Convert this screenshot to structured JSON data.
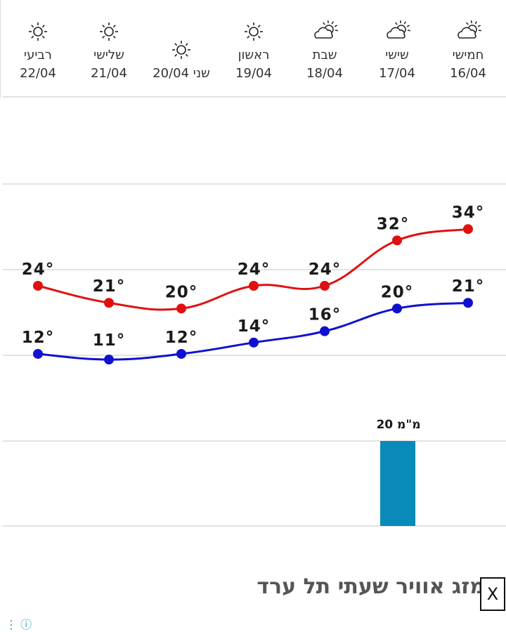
{
  "days": [
    {
      "day": "חמישי",
      "date": "16/04",
      "icon": "partly-cloudy-sun-icon"
    },
    {
      "day": "שישי",
      "date": "17/04",
      "icon": "partly-cloudy-sun-icon"
    },
    {
      "day": "שבת",
      "date": "18/04",
      "icon": "partly-cloudy-sun-icon"
    },
    {
      "day": "ראשון",
      "date": "19/04",
      "icon": "sun-icon"
    },
    {
      "day": "שני 20/04",
      "date": "",
      "icon": "sun-icon"
    },
    {
      "day": "שלישי",
      "date": "21/04",
      "icon": "sun-icon"
    },
    {
      "day": "רביעי",
      "date": "22/04",
      "icon": "sun-icon"
    }
  ],
  "chart_data": {
    "type": "line",
    "categories": [
      "16/04",
      "17/04",
      "18/04",
      "19/04",
      "20/04",
      "21/04",
      "22/04"
    ],
    "series": [
      {
        "values": [
          34,
          32,
          24,
          24,
          20,
          21,
          24
        ],
        "color": "#e01010"
      },
      {
        "values": [
          21,
          20,
          16,
          14,
          12,
          11,
          12
        ],
        "color": "#1010d0"
      }
    ],
    "rain": {
      "category": "17/04",
      "label": "20 מ\"מ",
      "color": "#0a8ab8"
    },
    "temp_suffix": "°"
  },
  "page": {
    "title": "מזג אוויר שעתי תל ערד",
    "close_label": "X"
  },
  "bottom": {
    "icons": "⋮ ⓘ"
  }
}
